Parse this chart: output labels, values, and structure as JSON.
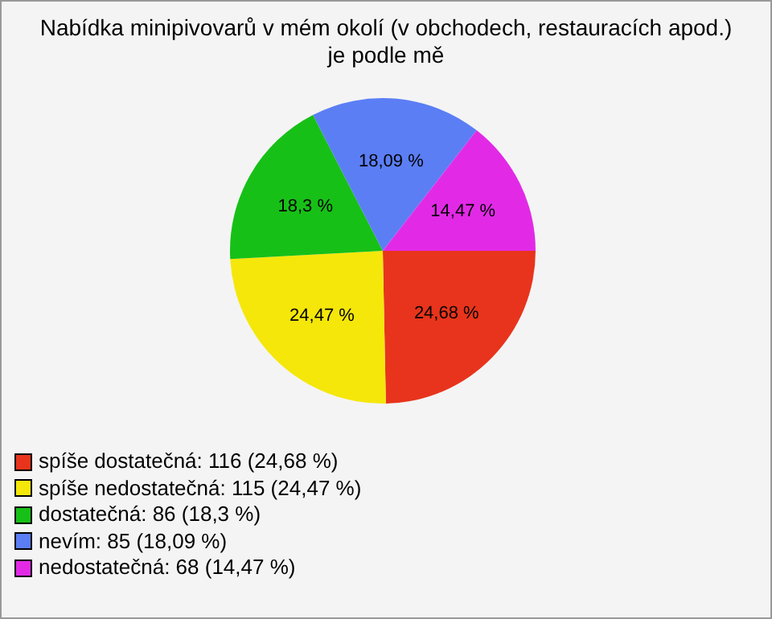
{
  "chart_data": {
    "type": "pie",
    "title": "Nabídka minipivovarů v mém okolí (v obchodech, restauracích apod.) je podle mě",
    "categories": [
      "spíše dostatečná: 116 (24,68 %)",
      "spíše nedostatečná: 115 (24,47 %)",
      "dostatečná: 86 (18,3 %)",
      "nevím: 85 (18,09 %)",
      "nedostatečná: 68 (14,47 %)"
    ],
    "values": [
      24.68,
      24.47,
      18.3,
      18.09,
      14.47
    ],
    "value_labels": [
      "24,68 %",
      "24,47 %",
      "18,3 %",
      "18,09 %",
      "14,47 %"
    ],
    "colors": [
      "#e8341c",
      "#f5e70a",
      "#17c017",
      "#5b7ef5",
      "#e22ae6"
    ],
    "legend": "bottom left"
  }
}
